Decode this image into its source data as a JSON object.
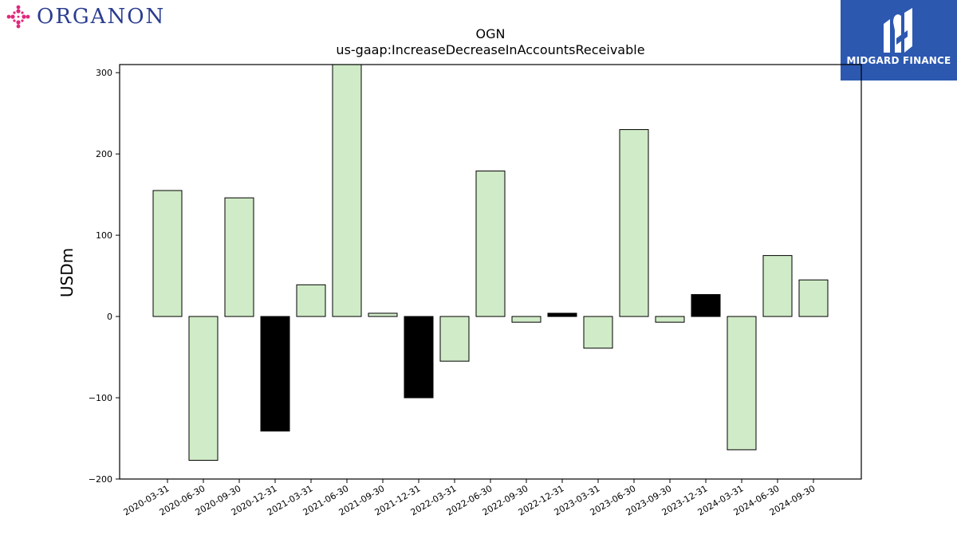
{
  "logos": {
    "left_brand": "ORGANON",
    "right_brand": "MIDGARD FINANCE"
  },
  "colors": {
    "bar_positive_fill": "#d0ebc7",
    "bar_highlight_fill": "#000000",
    "bar_edge": "#000000",
    "brand_navy": "#2a3c8f",
    "brand_magenta": "#e0287d",
    "midgard_blue": "#2c58b0"
  },
  "chart_data": {
    "type": "bar",
    "title": "OGN",
    "subtitle": "us-gaap:IncreaseDecreaseInAccountsReceivable",
    "xlabel": "",
    "ylabel": "USDm",
    "ylim": [
      -200,
      310
    ],
    "yticks": [
      -200,
      -100,
      0,
      100,
      200,
      300
    ],
    "grid": false,
    "legend": "none",
    "categories": [
      "2020-03-31",
      "2020-06-30",
      "2020-09-30",
      "2020-12-31",
      "2021-03-31",
      "2021-06-30",
      "2021-09-30",
      "2021-12-31",
      "2022-03-31",
      "2022-06-30",
      "2022-09-30",
      "2022-12-31",
      "2023-03-31",
      "2023-06-30",
      "2023-09-30",
      "2023-12-31",
      "2024-03-31",
      "2024-06-30",
      "2024-09-30"
    ],
    "values": [
      155,
      -177,
      146,
      -141,
      39,
      310,
      4,
      -100,
      -55,
      179,
      -7,
      4,
      -39,
      230,
      -7,
      27,
      -164,
      75,
      45
    ],
    "highlight": [
      false,
      false,
      false,
      true,
      false,
      false,
      false,
      true,
      false,
      false,
      false,
      true,
      false,
      false,
      false,
      true,
      false,
      false,
      false
    ]
  }
}
